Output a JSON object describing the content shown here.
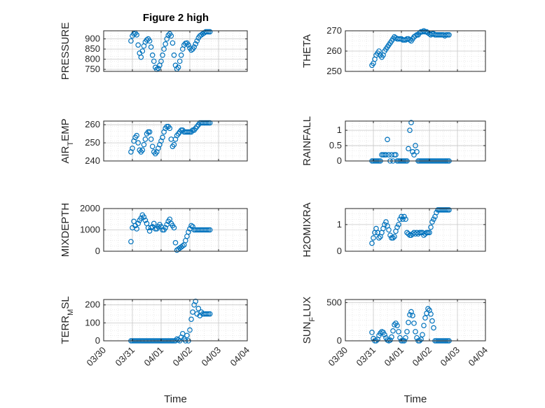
{
  "figure": {
    "title": "Figure 2 high",
    "xlabel": "Time",
    "marker_color": "#0072BD",
    "marker": "open-circle",
    "grid": true,
    "minor_grid": true
  },
  "chart_data": [
    {
      "type": "scatter",
      "ylabel": "PRESSURE",
      "ylim": [
        740,
        940
      ],
      "yticks": [
        750,
        800,
        850,
        900
      ],
      "xlim": [
        "03/30",
        "04/04"
      ],
      "x": [
        0.95,
        1.0,
        1.05,
        1.1,
        1.15,
        1.2,
        1.25,
        1.3,
        1.35,
        1.4,
        1.45,
        1.5,
        1.55,
        1.6,
        1.65,
        1.7,
        1.75,
        1.8,
        1.85,
        1.9,
        1.95,
        2.0,
        2.05,
        2.1,
        2.15,
        2.2,
        2.25,
        2.3,
        2.35,
        2.4,
        2.45,
        2.5,
        2.55,
        2.6,
        2.65,
        2.7,
        2.75,
        2.8,
        2.85,
        2.9,
        2.95,
        3.0,
        3.05,
        3.1,
        3.15,
        3.2,
        3.25,
        3.3,
        3.35,
        3.4,
        3.45,
        3.5,
        3.55,
        3.6,
        3.65,
        3.7
      ],
      "y": [
        890,
        915,
        925,
        928,
        920,
        870,
        830,
        810,
        840,
        865,
        885,
        895,
        900,
        890,
        860,
        820,
        790,
        760,
        750,
        755,
        770,
        790,
        820,
        850,
        875,
        900,
        918,
        925,
        915,
        880,
        820,
        770,
        752,
        760,
        790,
        820,
        850,
        870,
        878,
        880,
        870,
        855,
        845,
        850,
        860,
        875,
        890,
        905,
        915,
        920,
        925,
        930,
        935,
        935,
        935,
        935
      ]
    },
    {
      "type": "scatter",
      "ylabel": "THETA",
      "ylim": [
        250,
        270
      ],
      "yticks": [
        250,
        260,
        270
      ],
      "xlim": [
        "03/30",
        "04/04"
      ],
      "x": [
        0.95,
        1.0,
        1.05,
        1.1,
        1.15,
        1.2,
        1.25,
        1.3,
        1.35,
        1.4,
        1.45,
        1.5,
        1.55,
        1.6,
        1.65,
        1.7,
        1.75,
        1.8,
        1.85,
        1.9,
        1.95,
        2.0,
        2.05,
        2.1,
        2.15,
        2.2,
        2.25,
        2.3,
        2.35,
        2.4,
        2.45,
        2.5,
        2.55,
        2.6,
        2.65,
        2.7,
        2.75,
        2.8,
        2.85,
        2.9,
        2.95,
        3.0,
        3.05,
        3.1,
        3.15,
        3.2,
        3.25,
        3.3,
        3.35,
        3.4,
        3.45,
        3.5,
        3.55,
        3.6,
        3.65,
        3.7
      ],
      "y": [
        253,
        254,
        256,
        258,
        259,
        260,
        258,
        257,
        258,
        260,
        261,
        262,
        263,
        264,
        265,
        266,
        267,
        266.5,
        266,
        266,
        266,
        266,
        265.5,
        265.5,
        265.5,
        266,
        266,
        265.5,
        265,
        266,
        267,
        267.5,
        268,
        268,
        269,
        269.5,
        269.5,
        270,
        269.5,
        269.5,
        269,
        268.5,
        268,
        268.5,
        268.5,
        268,
        268,
        268,
        268,
        268,
        268,
        268,
        267.5,
        268,
        268,
        268
      ]
    },
    {
      "type": "scatter",
      "ylabel": "AIR_TEMP",
      "ylim": [
        240,
        262
      ],
      "yticks": [
        240,
        250,
        260
      ],
      "xlim": [
        "03/30",
        "04/04"
      ],
      "x": [
        0.95,
        1.0,
        1.05,
        1.1,
        1.15,
        1.2,
        1.25,
        1.3,
        1.35,
        1.4,
        1.45,
        1.5,
        1.55,
        1.6,
        1.65,
        1.7,
        1.75,
        1.8,
        1.85,
        1.9,
        1.95,
        2.0,
        2.05,
        2.1,
        2.15,
        2.2,
        2.25,
        2.3,
        2.35,
        2.4,
        2.45,
        2.5,
        2.55,
        2.6,
        2.65,
        2.7,
        2.75,
        2.8,
        2.85,
        2.9,
        2.95,
        3.0,
        3.05,
        3.1,
        3.15,
        3.2,
        3.25,
        3.3,
        3.35,
        3.4,
        3.45,
        3.5,
        3.55,
        3.6,
        3.65,
        3.7
      ],
      "y": [
        245,
        247,
        251,
        253,
        254,
        250,
        246,
        245,
        246,
        249,
        252,
        255,
        256,
        256,
        252,
        248,
        245,
        244,
        245,
        247,
        249,
        251,
        253,
        256,
        258,
        259,
        259,
        258,
        252,
        248,
        249,
        252,
        254,
        255,
        256,
        257,
        257,
        256,
        256,
        256,
        256,
        256,
        256,
        257,
        257,
        258,
        259,
        260,
        261,
        261,
        261,
        261,
        261,
        261,
        261,
        261
      ]
    },
    {
      "type": "scatter",
      "ylabel": "RAINFALL",
      "ylim": [
        0,
        1.3
      ],
      "yticks": [
        0,
        0.5,
        1
      ],
      "xlim": [
        "03/30",
        "04/04"
      ],
      "x": [
        0.95,
        1.0,
        1.05,
        1.1,
        1.15,
        1.2,
        1.25,
        1.3,
        1.35,
        1.4,
        1.45,
        1.5,
        1.55,
        1.6,
        1.65,
        1.7,
        1.75,
        1.8,
        1.85,
        1.9,
        1.95,
        2.0,
        2.05,
        2.1,
        2.15,
        2.2,
        2.25,
        2.3,
        2.35,
        2.4,
        2.45,
        2.5,
        2.55,
        2.6,
        2.65,
        2.7,
        2.75,
        2.8,
        2.85,
        2.9,
        2.95,
        3.0,
        3.05,
        3.1,
        3.15,
        3.2,
        3.25,
        3.3,
        3.35,
        3.4,
        3.45,
        3.5,
        3.55,
        3.6,
        3.65,
        3.7
      ],
      "y": [
        0,
        0,
        0,
        0,
        0,
        0,
        0,
        0.2,
        0.2,
        0.2,
        0.2,
        0.7,
        0.2,
        0,
        0.2,
        0,
        0.2,
        0.2,
        0,
        0,
        0,
        0,
        0,
        0,
        0,
        0,
        0.4,
        1,
        1.25,
        0.3,
        0.2,
        0.5,
        0.3,
        0,
        0,
        0,
        0,
        0,
        0,
        0,
        0,
        0,
        0,
        0,
        0,
        0,
        0,
        0,
        0,
        0,
        0,
        0,
        0,
        0,
        0,
        0
      ]
    },
    {
      "type": "scatter",
      "ylabel": "MIXDEPTH",
      "ylim": [
        0,
        2000
      ],
      "yticks": [
        0,
        1000,
        2000
      ],
      "xlim": [
        "03/30",
        "04/04"
      ],
      "x": [
        0.95,
        1.0,
        1.05,
        1.1,
        1.15,
        1.2,
        1.25,
        1.3,
        1.35,
        1.4,
        1.45,
        1.5,
        1.55,
        1.6,
        1.65,
        1.7,
        1.75,
        1.8,
        1.85,
        1.9,
        1.95,
        2.0,
        2.05,
        2.1,
        2.15,
        2.2,
        2.25,
        2.3,
        2.35,
        2.4,
        2.45,
        2.5,
        2.55,
        2.6,
        2.65,
        2.7,
        2.75,
        2.8,
        2.85,
        2.9,
        2.95,
        3.0,
        3.05,
        3.1,
        3.15,
        3.2,
        3.25,
        3.3,
        3.35,
        3.4,
        3.45,
        3.5,
        3.55,
        3.6,
        3.65,
        3.7
      ],
      "y": [
        450,
        1100,
        1400,
        1200,
        1050,
        1300,
        1450,
        1550,
        1700,
        1600,
        1450,
        1300,
        1100,
        950,
        1100,
        1150,
        1300,
        1050,
        1050,
        1150,
        1250,
        1150,
        1000,
        1000,
        1100,
        1250,
        1400,
        1500,
        1300,
        1200,
        1100,
        400,
        50,
        100,
        150,
        200,
        250,
        300,
        500,
        700,
        900,
        1050,
        1200,
        1150,
        1000,
        1000,
        1000,
        1000,
        1000,
        1000,
        1000,
        1000,
        1000,
        1000,
        1000,
        1000
      ]
    },
    {
      "type": "scatter",
      "ylabel": "H2OMIXRA",
      "ylim": [
        0,
        1.6
      ],
      "yticks": [
        0,
        1
      ],
      "xlim": [
        "03/30",
        "04/04"
      ],
      "x": [
        0.95,
        1.0,
        1.05,
        1.1,
        1.15,
        1.2,
        1.25,
        1.3,
        1.35,
        1.4,
        1.45,
        1.5,
        1.55,
        1.6,
        1.65,
        1.7,
        1.75,
        1.8,
        1.85,
        1.9,
        1.95,
        2.0,
        2.05,
        2.1,
        2.15,
        2.2,
        2.25,
        2.3,
        2.35,
        2.4,
        2.45,
        2.5,
        2.55,
        2.6,
        2.65,
        2.7,
        2.75,
        2.8,
        2.85,
        2.9,
        2.95,
        3.0,
        3.05,
        3.1,
        3.15,
        3.2,
        3.25,
        3.3,
        3.35,
        3.4,
        3.45,
        3.5,
        3.55,
        3.6,
        3.65,
        3.7
      ],
      "y": [
        0.3,
        0.5,
        0.7,
        0.85,
        0.7,
        0.5,
        0.55,
        0.7,
        0.85,
        1.0,
        1.1,
        0.95,
        0.8,
        0.6,
        0.5,
        0.5,
        0.55,
        0.75,
        0.9,
        1.0,
        1.2,
        1.3,
        1.2,
        1.3,
        1.2,
        0.7,
        0.65,
        0.6,
        0.6,
        0.65,
        0.7,
        0.65,
        0.7,
        0.65,
        0.7,
        0.7,
        0.7,
        0.6,
        0.65,
        0.7,
        0.7,
        0.7,
        0.9,
        1.1,
        1.2,
        1.3,
        1.45,
        1.55,
        1.55,
        1.55,
        1.55,
        1.55,
        1.55,
        1.55,
        1.55,
        1.55
      ]
    },
    {
      "type": "scatter",
      "ylabel": "TERR_MSL",
      "ylim": [
        0,
        230
      ],
      "yticks": [
        0,
        100,
        200
      ],
      "xlim": [
        "03/30",
        "04/04"
      ],
      "x": [
        0.95,
        1.0,
        1.05,
        1.1,
        1.15,
        1.2,
        1.25,
        1.3,
        1.35,
        1.4,
        1.45,
        1.5,
        1.55,
        1.6,
        1.65,
        1.7,
        1.75,
        1.8,
        1.85,
        1.9,
        1.95,
        2.0,
        2.05,
        2.1,
        2.15,
        2.2,
        2.25,
        2.3,
        2.35,
        2.4,
        2.45,
        2.5,
        2.55,
        2.6,
        2.65,
        2.7,
        2.75,
        2.8,
        2.85,
        2.9,
        2.95,
        3.0,
        3.05,
        3.1,
        3.15,
        3.2,
        3.25,
        3.3,
        3.35,
        3.4,
        3.45,
        3.5,
        3.55,
        3.6,
        3.65,
        3.7
      ],
      "y": [
        0,
        0,
        0,
        0,
        0,
        0,
        0,
        0,
        0,
        0,
        0,
        0,
        0,
        0,
        0,
        0,
        0,
        0,
        0,
        0,
        0,
        0,
        0,
        0,
        0,
        0,
        0,
        0,
        0,
        0,
        0,
        0,
        10,
        5,
        0,
        20,
        40,
        10,
        0,
        30,
        0,
        60,
        120,
        160,
        200,
        220,
        150,
        180,
        140,
        160,
        150,
        150,
        150,
        150,
        150,
        150
      ]
    },
    {
      "type": "scatter",
      "ylabel": "SUN_FLUX",
      "ylim": [
        0,
        540
      ],
      "yticks": [
        0,
        500
      ],
      "xlim": [
        "03/30",
        "04/04"
      ],
      "x": [
        0.95,
        1.0,
        1.05,
        1.1,
        1.15,
        1.2,
        1.25,
        1.3,
        1.35,
        1.4,
        1.45,
        1.5,
        1.55,
        1.6,
        1.65,
        1.7,
        1.75,
        1.8,
        1.85,
        1.9,
        1.95,
        2.0,
        2.05,
        2.1,
        2.15,
        2.2,
        2.25,
        2.3,
        2.35,
        2.4,
        2.45,
        2.5,
        2.55,
        2.6,
        2.65,
        2.7,
        2.75,
        2.8,
        2.85,
        2.9,
        2.95,
        3.0,
        3.05,
        3.1,
        3.15,
        3.2,
        3.25,
        3.3,
        3.35,
        3.4,
        3.45,
        3.5,
        3.55,
        3.6,
        3.65,
        3.7
      ],
      "y": [
        110,
        30,
        0,
        0,
        20,
        70,
        100,
        120,
        110,
        80,
        40,
        10,
        0,
        10,
        50,
        130,
        210,
        230,
        200,
        120,
        40,
        0,
        0,
        0,
        40,
        120,
        240,
        340,
        380,
        330,
        230,
        120,
        40,
        0,
        0,
        20,
        80,
        200,
        300,
        360,
        420,
        400,
        350,
        260,
        170,
        0,
        0,
        0,
        0,
        0,
        0,
        0,
        0,
        0,
        0,
        0
      ]
    }
  ],
  "xticks": [
    "03/30",
    "03/31",
    "04/01",
    "04/02",
    "04/03",
    "04/04"
  ]
}
